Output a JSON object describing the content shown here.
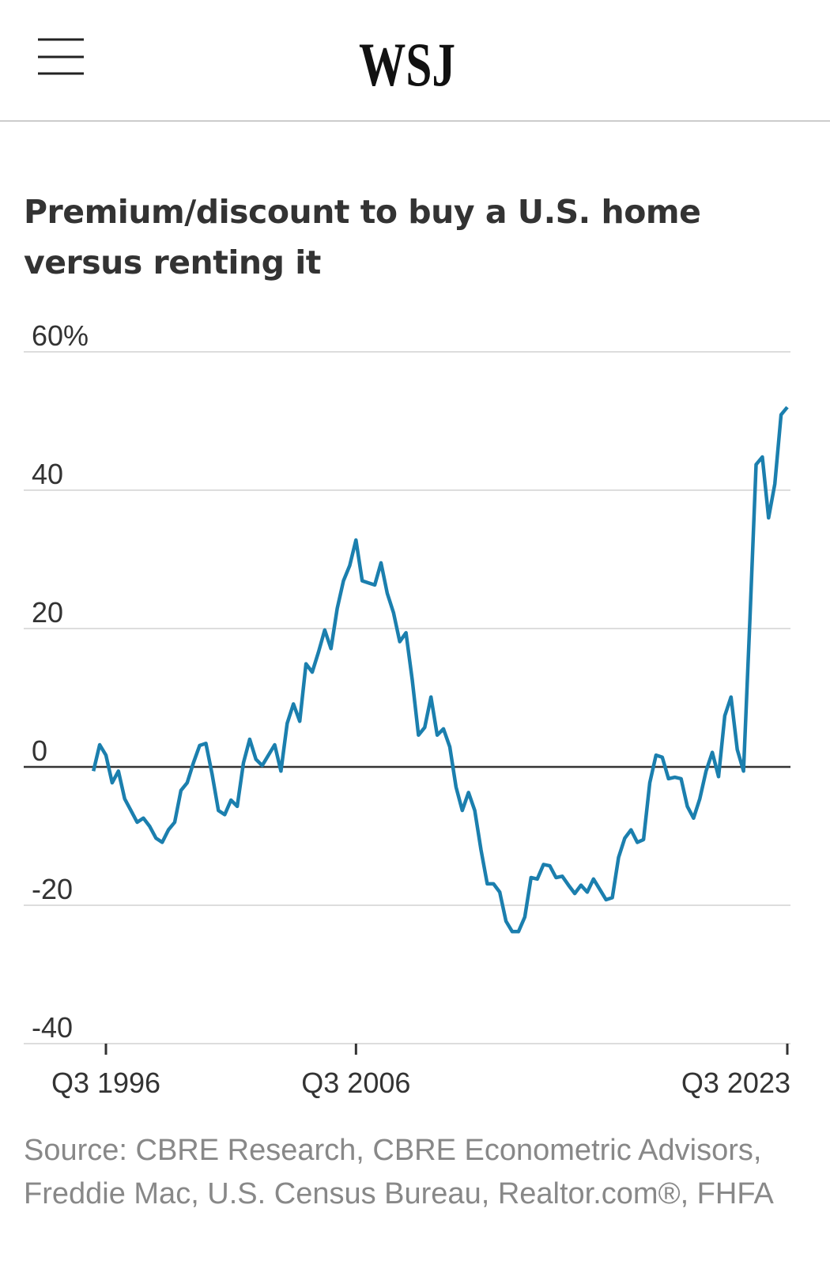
{
  "header": {
    "logo": "WSJ"
  },
  "chart_data": {
    "type": "line",
    "title": "Premium/discount to buy a U.S. home versus renting it",
    "source": "Source: CBRE Research, CBRE Econometric Advisors, Freddie Mac, U.S. Census Bureau, Realtor.com®, FHFA",
    "color": "#1b7fae",
    "categories": [
      null,
      null,
      "Q3 1996",
      null,
      null,
      null,
      null,
      null,
      null,
      null,
      null,
      null,
      null,
      null,
      null,
      null,
      null,
      null,
      null,
      null,
      null,
      null,
      null,
      null,
      null,
      null,
      null,
      null,
      null,
      null,
      null,
      null,
      null,
      null,
      null,
      null,
      null,
      null,
      null,
      null,
      null,
      null,
      "Q3 2006",
      null,
      null,
      null,
      null,
      null,
      null,
      null,
      null,
      null,
      null,
      null,
      null,
      null,
      null,
      null,
      null,
      null,
      null,
      null,
      null,
      null,
      null,
      null,
      null,
      null,
      null,
      null,
      null,
      null,
      null,
      null,
      null,
      null,
      null,
      null,
      null,
      null,
      null,
      null,
      null,
      null,
      null,
      null,
      null,
      null,
      null,
      null,
      null,
      null,
      null,
      null,
      null,
      null,
      null,
      null,
      null,
      null,
      null,
      null,
      null,
      null,
      null,
      null,
      null,
      null,
      null,
      null,
      null,
      "Q3 2023"
    ],
    "values": [
      -0.6,
      3.2,
      1.7,
      -2.3,
      -0.6,
      -4.6,
      -6.3,
      -8,
      -7.4,
      -8.6,
      -10.3,
      -10.9,
      -9.1,
      -8,
      -3.4,
      -2.3,
      0.6,
      3.1,
      3.4,
      -1.1,
      -6.3,
      -6.9,
      -4.8,
      -5.7,
      0.6,
      4,
      1.1,
      0.2,
      1.7,
      3.2,
      -0.6,
      6.3,
      9.1,
      6.6,
      14.9,
      13.7,
      16.6,
      19.8,
      17.1,
      22.9,
      26.9,
      29.1,
      32.8,
      26.9,
      26.6,
      26.3,
      29.5,
      25.1,
      22.3,
      18.1,
      19.4,
      12.6,
      4.6,
      5.7,
      10.1,
      4.6,
      5.5,
      2.9,
      -2.9,
      -6.3,
      -3.7,
      -6.3,
      -12,
      -16.9,
      -16.9,
      -18.1,
      -22.3,
      -23.8,
      -23.8,
      -21.7,
      -16,
      -16.2,
      -14.1,
      -14.3,
      -16,
      -15.8,
      -17.1,
      -18.3,
      -17.1,
      -18.1,
      -16.2,
      -17.7,
      -19.2,
      -18.9,
      -13.1,
      -10.3,
      -9.1,
      -10.9,
      -10.5,
      -2.3,
      1.7,
      1.4,
      -1.7,
      -1.5,
      -1.7,
      -5.7,
      -7.4,
      -4.6,
      -0.6,
      2.1,
      -1.4,
      7.4,
      10.1,
      2.5,
      -0.6,
      21.1,
      43.7,
      44.8,
      36,
      40.9,
      50.9,
      52
    ],
    "ylim": [
      -40,
      60
    ],
    "yticks": [
      -40,
      -20,
      0,
      20,
      40,
      {
        "value": 60,
        "label": "60%"
      }
    ],
    "grid": true
  }
}
